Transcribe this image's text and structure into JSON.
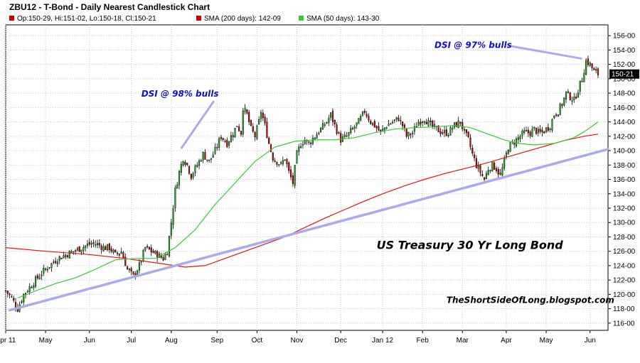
{
  "chart_data": {
    "type": "candlestick",
    "title": "ZBU12 - T-Bond - Daily Nearest Candlestick Chart",
    "legend": [
      {
        "label": "Op:150-29, Hi:151-02, Lo:150-18, Cl:150-21",
        "color": "#cc0000"
      },
      {
        "label": "SMA (200 days): 142-09",
        "color": "#cc0000"
      },
      {
        "label": "SMA (50 days): 143-30",
        "color": "#33cc33"
      }
    ],
    "y_axis": {
      "ticks": [
        116,
        118,
        120,
        122,
        124,
        126,
        128,
        130,
        132,
        134,
        136,
        138,
        140,
        142,
        144,
        146,
        148,
        150,
        152,
        154,
        156
      ],
      "tick_labels": [
        "116-00",
        "118-00",
        "120-00",
        "122-00",
        "124-00",
        "126-00",
        "128-00",
        "130-00",
        "132-00",
        "134-00",
        "136-00",
        "138-00",
        "140-00",
        "142-00",
        "144-00",
        "146-00",
        "148-00",
        "150-00",
        "152-00",
        "154-00",
        "156-00"
      ],
      "range": [
        115,
        157.5
      ],
      "last_value": 150.66,
      "last_label": "150-21"
    },
    "x_axis": {
      "months": [
        {
          "label": "Apr 11",
          "t": 0
        },
        {
          "label": "May",
          "t": 20
        },
        {
          "label": "Jun",
          "t": 42
        },
        {
          "label": "Jul",
          "t": 63
        },
        {
          "label": "Aug",
          "t": 83
        },
        {
          "label": "Sep",
          "t": 106
        },
        {
          "label": "Oct",
          "t": 126
        },
        {
          "label": "Nov",
          "t": 146
        },
        {
          "label": "Dec",
          "t": 168
        },
        {
          "label": "Jan 12",
          "t": 189
        },
        {
          "label": "Feb",
          "t": 209
        },
        {
          "label": "Mar",
          "t": 229
        },
        {
          "label": "Apr",
          "t": 251
        },
        {
          "label": "May",
          "t": 271
        },
        {
          "label": "Jun",
          "t": 293
        }
      ],
      "range": [
        0,
        302
      ]
    },
    "price_path": [
      [
        0,
        120.5
      ],
      [
        3,
        119.5
      ],
      [
        6,
        118.0
      ],
      [
        9,
        120.0
      ],
      [
        12,
        121.0
      ],
      [
        15,
        122.0
      ],
      [
        18,
        123.0
      ],
      [
        22,
        124.0
      ],
      [
        26,
        125.0
      ],
      [
        30,
        125.5
      ],
      [
        34,
        126.0
      ],
      [
        38,
        126.5
      ],
      [
        42,
        127.0
      ],
      [
        46,
        127.0
      ],
      [
        49,
        126.5
      ],
      [
        52,
        126.5
      ],
      [
        55,
        125.5
      ],
      [
        58,
        126.0
      ],
      [
        61,
        123.5
      ],
      [
        64,
        122.5
      ],
      [
        67,
        124.0
      ],
      [
        70,
        126.5
      ],
      [
        73,
        126.0
      ],
      [
        76,
        125.5
      ],
      [
        79,
        125.0
      ],
      [
        81,
        126.0
      ],
      [
        83,
        130.0
      ],
      [
        85,
        134.5
      ],
      [
        87,
        137.0
      ],
      [
        89,
        139.0
      ],
      [
        91,
        138.0
      ],
      [
        93,
        136.5
      ],
      [
        96,
        138.0
      ],
      [
        99,
        139.5
      ],
      [
        102,
        138.5
      ],
      [
        105,
        140.0
      ],
      [
        108,
        142.0
      ],
      [
        111,
        141.0
      ],
      [
        114,
        142.5
      ],
      [
        116,
        143.5
      ],
      [
        118,
        142.5
      ],
      [
        119,
        146.0
      ],
      [
        121,
        145.0
      ],
      [
        123,
        143.0
      ],
      [
        125,
        142.0
      ],
      [
        127,
        144.0
      ],
      [
        128,
        145.5
      ],
      [
        130,
        143.5
      ],
      [
        132,
        141.0
      ],
      [
        134,
        139.0
      ],
      [
        136,
        138.5
      ],
      [
        138,
        138.0
      ],
      [
        140,
        139.0
      ],
      [
        142,
        137.0
      ],
      [
        144,
        135.5
      ],
      [
        146,
        139.5
      ],
      [
        148,
        141.0
      ],
      [
        150,
        141.5
      ],
      [
        152,
        141.0
      ],
      [
        155,
        142.0
      ],
      [
        158,
        143.0
      ],
      [
        161,
        144.0
      ],
      [
        163,
        145.0
      ],
      [
        165,
        143.5
      ],
      [
        168,
        141.5
      ],
      [
        171,
        142.0
      ],
      [
        174,
        143.0
      ],
      [
        177,
        144.0
      ],
      [
        180,
        145.5
      ],
      [
        183,
        144.0
      ],
      [
        185,
        143.5
      ],
      [
        188,
        142.5
      ],
      [
        191,
        143.5
      ],
      [
        194,
        144.0
      ],
      [
        197,
        144.5
      ],
      [
        199,
        143.5
      ],
      [
        201,
        142.0
      ],
      [
        204,
        142.5
      ],
      [
        207,
        144.0
      ],
      [
        210,
        144.5
      ],
      [
        213,
        143.5
      ],
      [
        216,
        143.0
      ],
      [
        219,
        142.5
      ],
      [
        222,
        142.5
      ],
      [
        225,
        143.5
      ],
      [
        228,
        144.0
      ],
      [
        230,
        142.5
      ],
      [
        232,
        141.5
      ],
      [
        234,
        139.5
      ],
      [
        236,
        138.0
      ],
      [
        238,
        137.0
      ],
      [
        240,
        136.0
      ],
      [
        242,
        137.5
      ],
      [
        244,
        138.0
      ],
      [
        246,
        137.5
      ],
      [
        248,
        136.5
      ],
      [
        250,
        138.5
      ],
      [
        252,
        140.5
      ],
      [
        254,
        141.0
      ],
      [
        256,
        141.5
      ],
      [
        258,
        142.0
      ],
      [
        260,
        142.5
      ],
      [
        263,
        142.5
      ],
      [
        265,
        143.0
      ],
      [
        267,
        142.5
      ],
      [
        269,
        142.5
      ],
      [
        271,
        143.0
      ],
      [
        273,
        143.5
      ],
      [
        275,
        145.0
      ],
      [
        277,
        145.5
      ],
      [
        279,
        146.5
      ],
      [
        281,
        148.0
      ],
      [
        283,
        147.5
      ],
      [
        285,
        147.0
      ],
      [
        287,
        148.5
      ],
      [
        289,
        150.0
      ],
      [
        291,
        152.5
      ],
      [
        293,
        152.0
      ],
      [
        295,
        151.0
      ],
      [
        297,
        150.66
      ]
    ],
    "sma200": [
      [
        0,
        126.5
      ],
      [
        20,
        126.0
      ],
      [
        40,
        125.6
      ],
      [
        60,
        125.0
      ],
      [
        80,
        124.2
      ],
      [
        90,
        123.8
      ],
      [
        100,
        124.0
      ],
      [
        110,
        125.0
      ],
      [
        120,
        126.0
      ],
      [
        130,
        127.0
      ],
      [
        140,
        128.0
      ],
      [
        150,
        129.3
      ],
      [
        160,
        130.6
      ],
      [
        170,
        131.8
      ],
      [
        180,
        133.0
      ],
      [
        190,
        134.1
      ],
      [
        200,
        135.1
      ],
      [
        210,
        136.0
      ],
      [
        220,
        136.8
      ],
      [
        230,
        137.5
      ],
      [
        240,
        138.2
      ],
      [
        250,
        139.0
      ],
      [
        260,
        139.8
      ],
      [
        270,
        140.6
      ],
      [
        280,
        141.4
      ],
      [
        290,
        142.0
      ],
      [
        297,
        142.3
      ]
    ],
    "sma50": [
      [
        6,
        119.5
      ],
      [
        15,
        120.5
      ],
      [
        25,
        121.5
      ],
      [
        35,
        122.3
      ],
      [
        45,
        123.5
      ],
      [
        55,
        124.8
      ],
      [
        65,
        125.0
      ],
      [
        75,
        125.0
      ],
      [
        85,
        126.5
      ],
      [
        95,
        129.0
      ],
      [
        105,
        132.5
      ],
      [
        115,
        135.5
      ],
      [
        125,
        138.5
      ],
      [
        135,
        140.5
      ],
      [
        145,
        141.3
      ],
      [
        155,
        141.5
      ],
      [
        165,
        141.5
      ],
      [
        175,
        141.8
      ],
      [
        185,
        142.5
      ],
      [
        195,
        143.0
      ],
      [
        205,
        143.2
      ],
      [
        215,
        143.3
      ],
      [
        225,
        143.5
      ],
      [
        233,
        143.2
      ],
      [
        240,
        142.5
      ],
      [
        250,
        141.5
      ],
      [
        257,
        141.0
      ],
      [
        265,
        140.8
      ],
      [
        275,
        141.0
      ],
      [
        285,
        141.8
      ],
      [
        291,
        142.8
      ],
      [
        297,
        144.0
      ]
    ],
    "trendline": [
      [
        2,
        117.8
      ],
      [
        302,
        140.2
      ]
    ],
    "annotations": [
      {
        "text": "DSI @ 98% bulls",
        "x": 68,
        "y": 147.5,
        "pointer_to": [
          88,
          140.3
        ]
      },
      {
        "text": "DSI @ 97% bulls",
        "x": 215,
        "y": 154.3,
        "pointer_to": [
          289,
          152.8
        ]
      },
      {
        "text": "US Treasury 30 Yr Long Bond",
        "x": 186,
        "y": 126.3
      },
      {
        "text": "TheShortSideOfLong.blogspot.com",
        "x": 221,
        "y": 118.8
      }
    ],
    "colors": {
      "up": "#22aa22",
      "down": "#cc0000",
      "sma200": "#ee1111",
      "sma50": "#33cc33",
      "trendline": "#aaaaee",
      "annotation": "#1010d0",
      "last_badge": "#000000"
    }
  }
}
